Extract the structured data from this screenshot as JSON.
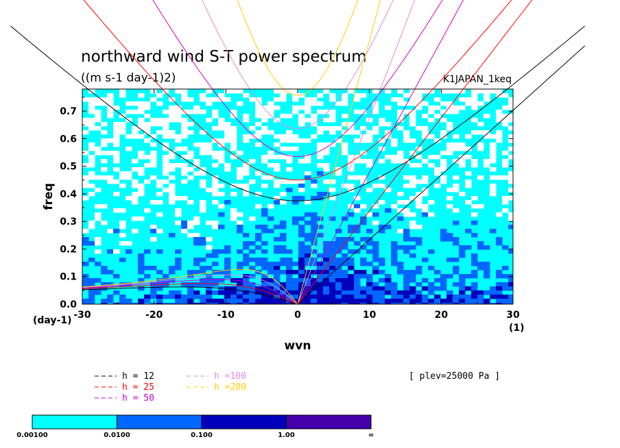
{
  "chart_data": {
    "type": "heatmap",
    "title": "northward wind S-T power spectrum",
    "subtitle": "((m s-1 day-1)2)",
    "case_label": "K1JAPAN_1keq",
    "xlabel": "wvn",
    "ylabel": "freq",
    "x_unit": "(1)",
    "y_unit": "(day-1)",
    "xlim": [
      -30,
      30
    ],
    "ylim": [
      0,
      0.78
    ],
    "xticks": [
      "-30",
      "-20",
      "-10",
      "0",
      "10",
      "20",
      "30"
    ],
    "yticks": [
      "0.0",
      "0.1",
      "0.2",
      "0.3",
      "0.4",
      "0.5",
      "0.6",
      "0.7"
    ],
    "dispersion_series": [
      {
        "name": "h = 12",
        "h": 12,
        "color": "#000000"
      },
      {
        "name": "h = 25",
        "h": 25,
        "color": "#ff0000"
      },
      {
        "name": "h = 50",
        "h": 50,
        "color": "#cc00cc"
      },
      {
        "name": "h =100",
        "h": 100,
        "color": "#dd88dd"
      },
      {
        "name": "h =200",
        "h": 200,
        "color": "#ffcc00"
      }
    ],
    "annotation": "[ plev=25000 Pa ]",
    "colorbar": {
      "levels": [
        "0.00100",
        "0.0100",
        "0.100",
        "1.00",
        "∞"
      ],
      "colors": [
        "#00ffff",
        "#0066ff",
        "#0000bb",
        "#4400aa"
      ]
    }
  }
}
